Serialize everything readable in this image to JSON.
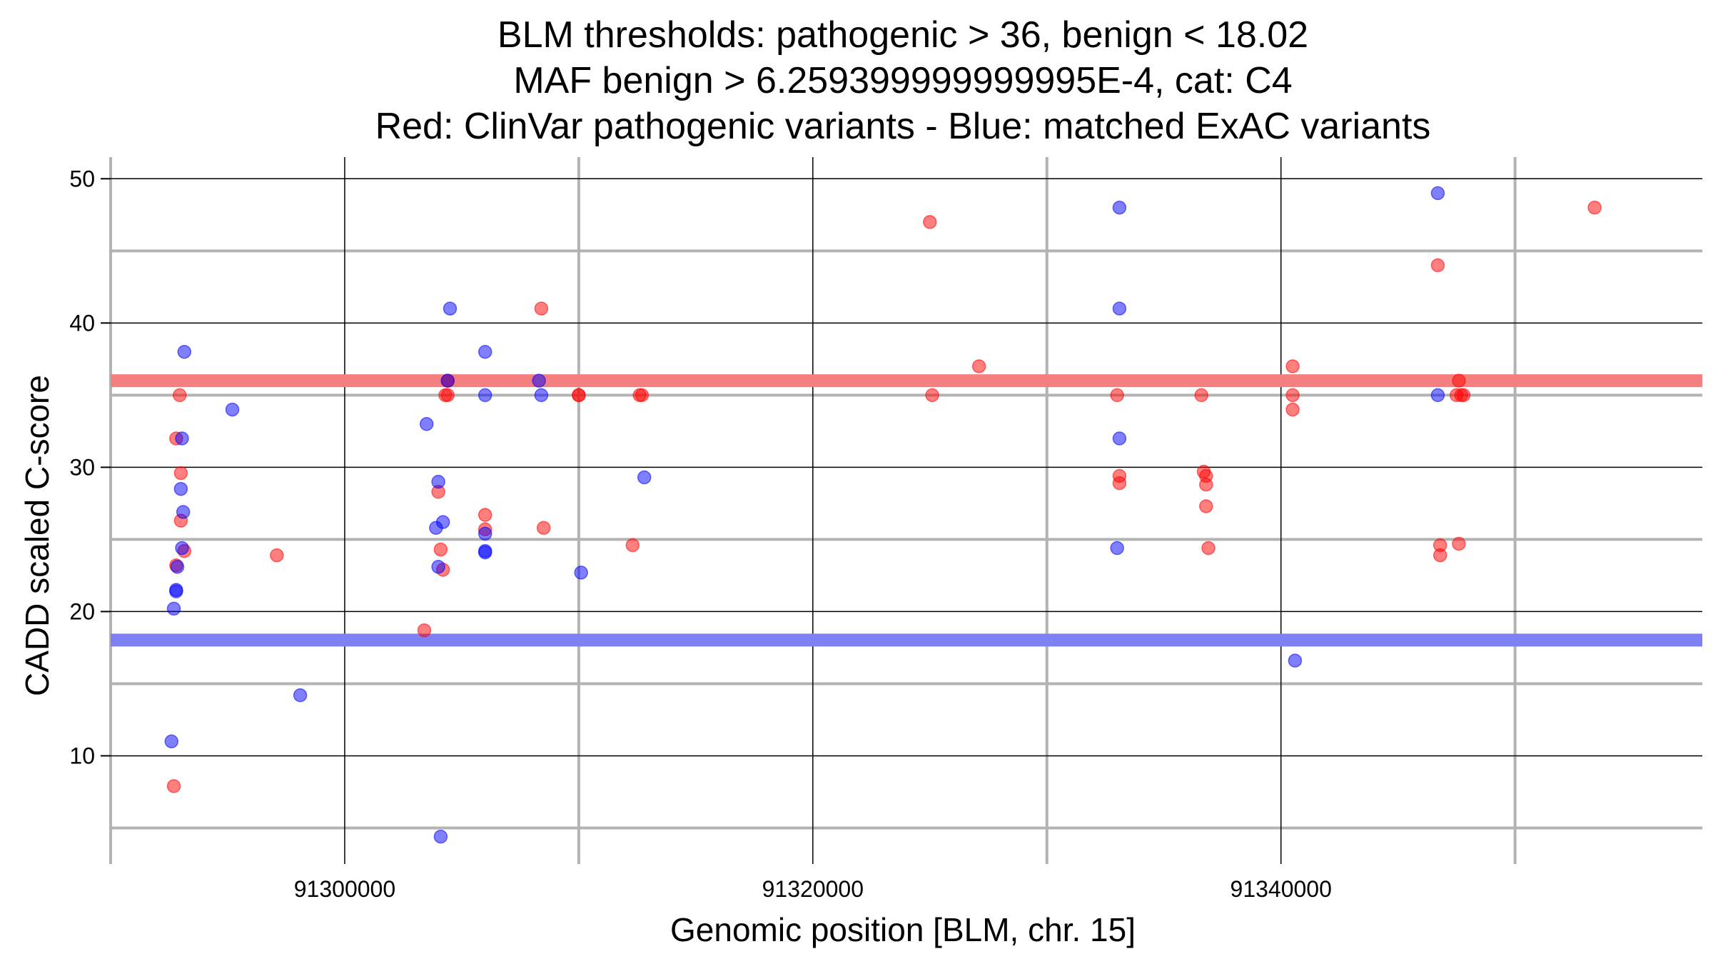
{
  "chart_data": {
    "type": "scatter",
    "title_lines": [
      "BLM thresholds: pathogenic > 36, benign < 18.02",
      "MAF benign > 6.259399999999995E-4, cat: C4",
      "Red: ClinVar pathogenic variants - Blue: matched ExAC variants"
    ],
    "xlabel": "Genomic position [BLM, chr. 15]",
    "ylabel": "CADD scaled C-score",
    "xlim": [
      91290000,
      91358000
    ],
    "ylim": [
      2.5,
      51.5
    ],
    "x_major_ticks": [
      91300000,
      91320000,
      91340000
    ],
    "x_major_tick_labels": [
      "91300000",
      "91320000",
      "91340000"
    ],
    "x_minor_ticks": [
      91290000,
      91310000,
      91330000,
      91350000
    ],
    "y_major_ticks": [
      10,
      20,
      30,
      40,
      50
    ],
    "y_major_tick_labels": [
      "10",
      "20",
      "30",
      "40",
      "50"
    ],
    "y_minor_ticks": [
      5,
      15,
      25,
      35,
      45
    ],
    "grid": true,
    "thresholds": [
      {
        "value": 36,
        "color": "#f47f7f"
      },
      {
        "value": 18.02,
        "color": "#7f7ff4"
      }
    ],
    "series": [
      {
        "color": "#ff0000",
        "x": [
          91292700,
          91292800,
          91292800,
          91292950,
          91293000,
          91293000,
          91293150,
          91297100,
          91303400,
          91304000,
          91304100,
          91304200,
          91304300,
          91304400,
          91304400,
          91306000,
          91306000,
          91308400,
          91308500,
          91310000,
          91310000,
          91312300,
          91312600,
          91312700,
          91325000,
          91325100,
          91327100,
          91333000,
          91333100,
          91333100,
          91336600,
          91336700,
          91336800,
          91336800,
          91336800,
          91336900,
          91340500,
          91340500,
          91340500,
          91346700,
          91346800,
          91346800,
          91347500,
          91347600,
          91347600,
          91347700,
          91347800,
          91353400
        ],
        "y": [
          7.9,
          23.2,
          32,
          35,
          29.6,
          26.3,
          24.2,
          23.9,
          18.7,
          28.3,
          24.3,
          22.9,
          35,
          35,
          36,
          26.7,
          25.7,
          41,
          25.8,
          35,
          35,
          24.6,
          35,
          35,
          47,
          35,
          37,
          35,
          29.4,
          28.9,
          35,
          29.7,
          29.4,
          28.8,
          27.3,
          24.4,
          37,
          35,
          34,
          44,
          24.6,
          23.9,
          35,
          24.7,
          36,
          35,
          35,
          48
        ]
      },
      {
        "color": "#0000ff",
        "x": [
          91292600,
          91292700,
          91292800,
          91292800,
          91292850,
          91293000,
          91293050,
          91293050,
          91293100,
          91293150,
          91295200,
          91298100,
          91303500,
          91303900,
          91304000,
          91304000,
          91304100,
          91304200,
          91304400,
          91304500,
          91306000,
          91306000,
          91306000,
          91306000,
          91306000,
          91308300,
          91308400,
          91310100,
          91312800,
          91333000,
          91333100,
          91333100,
          91333100,
          91340600,
          91346700,
          91346700
        ],
        "y": [
          11,
          20.2,
          21.5,
          21.4,
          23.1,
          28.5,
          24.4,
          32,
          26.9,
          38,
          34,
          14.2,
          33,
          25.8,
          29,
          23.1,
          4.4,
          26.2,
          36,
          41,
          38,
          35,
          25.4,
          24.2,
          24.1,
          36,
          35,
          22.7,
          29.3,
          24.4,
          32,
          41,
          48,
          16.6,
          49,
          35
        ]
      }
    ]
  }
}
